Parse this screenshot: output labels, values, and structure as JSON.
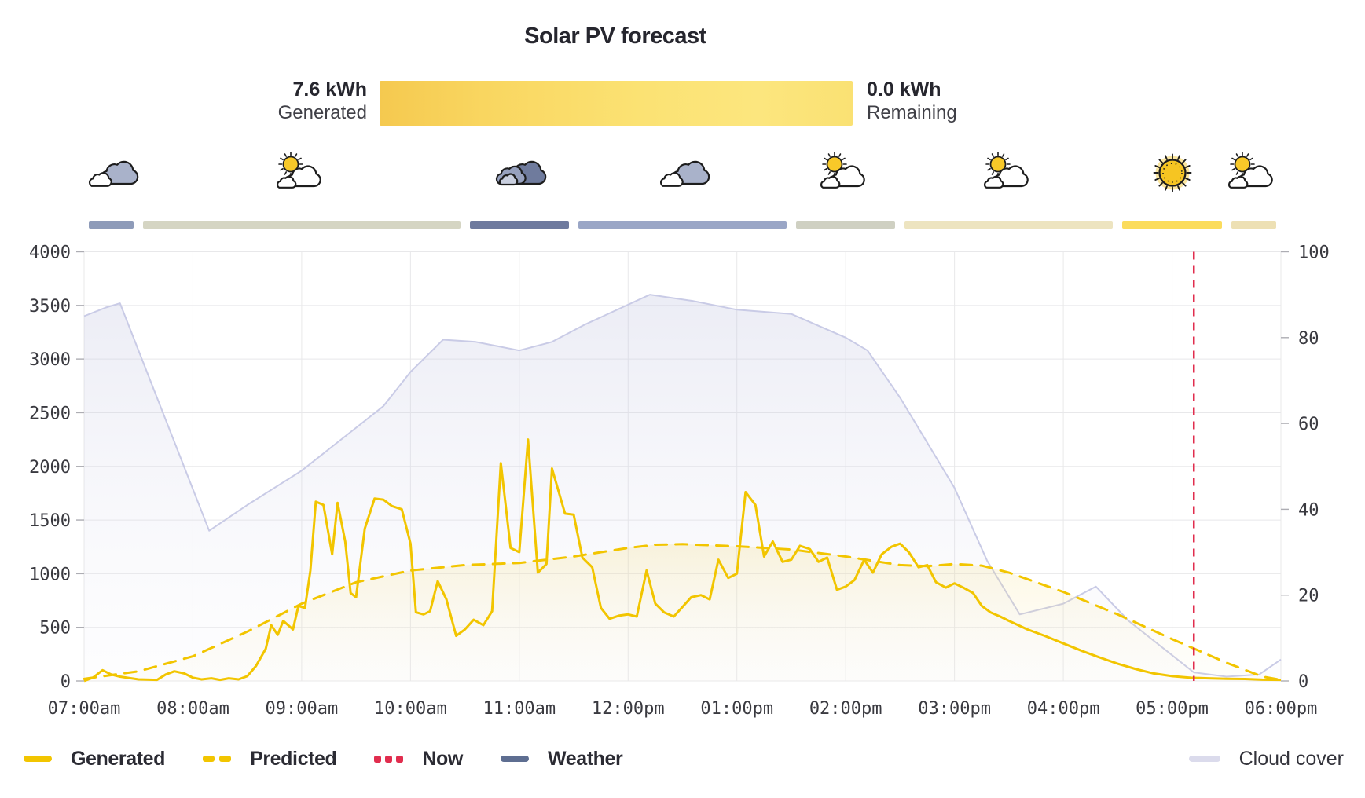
{
  "title": "Solar PV forecast",
  "energy": {
    "generated_value": "7.6 kWh",
    "generated_label": "Generated",
    "remaining_value": "0.0 kWh",
    "remaining_label": "Remaining"
  },
  "colors": {
    "generated": "#F2C500",
    "predicted": "#F2C500",
    "now": "#E12D4E",
    "weather": "#5E6E91",
    "cloud_cover": "#DBDBEC",
    "grid": "#E8E8EA",
    "axis_text": "#3A3A40"
  },
  "weather": {
    "segments": [
      {
        "icon": "cloudy",
        "color": "#8E9BB9",
        "start": 7,
        "end": 7.5
      },
      {
        "icon": "partly-sunny",
        "color": "#D5D5C3",
        "start": 7.5,
        "end": 10.5
      },
      {
        "icon": "overcast",
        "color": "#6E7A9E",
        "start": 10.5,
        "end": 11.5
      },
      {
        "icon": "cloudy",
        "color": "#9AA6C6",
        "start": 11.5,
        "end": 13.5
      },
      {
        "icon": "partly-sunny",
        "color": "#CFD0C2",
        "start": 13.5,
        "end": 14.5
      },
      {
        "icon": "partly-sunny",
        "color": "#EDE4C0",
        "start": 14.5,
        "end": 16.5
      },
      {
        "icon": "sunny",
        "color": "#FBDC5C",
        "start": 16.5,
        "end": 17.5
      },
      {
        "icon": "partly-sunny",
        "color": "#EDE0B4",
        "start": 17.5,
        "end": 18
      }
    ]
  },
  "chart_data": {
    "type": "line",
    "title": "Solar PV forecast",
    "x_axis": {
      "unit": "hour-of-day",
      "start": 7,
      "end": 18,
      "tick_hours": [
        7,
        8,
        9,
        10,
        11,
        12,
        13,
        14,
        15,
        16,
        17,
        18
      ],
      "tick_labels": [
        "07:00am",
        "08:00am",
        "09:00am",
        "10:00am",
        "11:00am",
        "12:00pm",
        "01:00pm",
        "02:00pm",
        "03:00pm",
        "04:00pm",
        "05:00pm",
        "06:00pm"
      ]
    },
    "y_left": {
      "label": "",
      "min": 0,
      "max": 4000,
      "ticks": [
        0,
        500,
        1000,
        1500,
        2000,
        2500,
        3000,
        3500,
        4000
      ]
    },
    "y_right": {
      "label": "",
      "min": 0,
      "max": 100,
      "ticks": [
        0,
        20,
        40,
        60,
        80,
        100
      ]
    },
    "now_hour": 17.2,
    "grid": true,
    "series": [
      {
        "name": "Generated",
        "axis": "left",
        "style": "solid",
        "color": "#F2C500",
        "points": [
          [
            7.0,
            0
          ],
          [
            7.08,
            30
          ],
          [
            7.17,
            100
          ],
          [
            7.25,
            60
          ],
          [
            7.33,
            40
          ],
          [
            7.5,
            15
          ],
          [
            7.67,
            10
          ],
          [
            7.75,
            60
          ],
          [
            7.83,
            90
          ],
          [
            7.92,
            70
          ],
          [
            8.0,
            30
          ],
          [
            8.08,
            15
          ],
          [
            8.17,
            25
          ],
          [
            8.25,
            10
          ],
          [
            8.33,
            25
          ],
          [
            8.42,
            15
          ],
          [
            8.5,
            45
          ],
          [
            8.58,
            140
          ],
          [
            8.67,
            300
          ],
          [
            8.72,
            520
          ],
          [
            8.78,
            430
          ],
          [
            8.83,
            560
          ],
          [
            8.92,
            480
          ],
          [
            8.97,
            700
          ],
          [
            9.03,
            680
          ],
          [
            9.08,
            1030
          ],
          [
            9.13,
            1670
          ],
          [
            9.2,
            1640
          ],
          [
            9.28,
            1180
          ],
          [
            9.33,
            1660
          ],
          [
            9.4,
            1300
          ],
          [
            9.45,
            820
          ],
          [
            9.5,
            780
          ],
          [
            9.58,
            1420
          ],
          [
            9.67,
            1700
          ],
          [
            9.75,
            1690
          ],
          [
            9.83,
            1630
          ],
          [
            9.92,
            1600
          ],
          [
            10.0,
            1280
          ],
          [
            10.05,
            640
          ],
          [
            10.12,
            620
          ],
          [
            10.18,
            650
          ],
          [
            10.25,
            930
          ],
          [
            10.33,
            760
          ],
          [
            10.42,
            420
          ],
          [
            10.5,
            480
          ],
          [
            10.58,
            570
          ],
          [
            10.67,
            520
          ],
          [
            10.75,
            650
          ],
          [
            10.83,
            2030
          ],
          [
            10.92,
            1240
          ],
          [
            11.0,
            1200
          ],
          [
            11.08,
            2250
          ],
          [
            11.17,
            1010
          ],
          [
            11.25,
            1090
          ],
          [
            11.3,
            1980
          ],
          [
            11.42,
            1560
          ],
          [
            11.5,
            1550
          ],
          [
            11.58,
            1150
          ],
          [
            11.67,
            1060
          ],
          [
            11.75,
            680
          ],
          [
            11.83,
            580
          ],
          [
            11.92,
            610
          ],
          [
            12.0,
            620
          ],
          [
            12.08,
            600
          ],
          [
            12.17,
            1030
          ],
          [
            12.25,
            720
          ],
          [
            12.33,
            640
          ],
          [
            12.42,
            600
          ],
          [
            12.5,
            690
          ],
          [
            12.58,
            780
          ],
          [
            12.67,
            800
          ],
          [
            12.75,
            760
          ],
          [
            12.83,
            1130
          ],
          [
            12.92,
            960
          ],
          [
            13.0,
            1000
          ],
          [
            13.08,
            1760
          ],
          [
            13.17,
            1640
          ],
          [
            13.25,
            1160
          ],
          [
            13.33,
            1300
          ],
          [
            13.42,
            1110
          ],
          [
            13.5,
            1130
          ],
          [
            13.58,
            1260
          ],
          [
            13.67,
            1230
          ],
          [
            13.75,
            1110
          ],
          [
            13.83,
            1150
          ],
          [
            13.92,
            850
          ],
          [
            14.0,
            880
          ],
          [
            14.08,
            940
          ],
          [
            14.17,
            1130
          ],
          [
            14.25,
            1010
          ],
          [
            14.33,
            1180
          ],
          [
            14.42,
            1250
          ],
          [
            14.5,
            1280
          ],
          [
            14.58,
            1200
          ],
          [
            14.67,
            1060
          ],
          [
            14.75,
            1080
          ],
          [
            14.83,
            920
          ],
          [
            14.92,
            870
          ],
          [
            15.0,
            910
          ],
          [
            15.08,
            870
          ],
          [
            15.17,
            820
          ],
          [
            15.25,
            700
          ],
          [
            15.33,
            640
          ],
          [
            15.42,
            600
          ],
          [
            15.5,
            560
          ],
          [
            15.67,
            480
          ],
          [
            15.83,
            420
          ],
          [
            16.0,
            350
          ],
          [
            16.17,
            280
          ],
          [
            16.33,
            220
          ],
          [
            16.5,
            160
          ],
          [
            16.67,
            110
          ],
          [
            16.83,
            70
          ],
          [
            17.0,
            45
          ],
          [
            17.17,
            30
          ],
          [
            17.33,
            25
          ],
          [
            17.5,
            20
          ],
          [
            17.67,
            18
          ],
          [
            17.83,
            12
          ],
          [
            18.0,
            10
          ]
        ]
      },
      {
        "name": "Predicted",
        "axis": "left",
        "style": "dashed",
        "color": "#F2C500",
        "points": [
          [
            7.0,
            20
          ],
          [
            7.5,
            90
          ],
          [
            8.0,
            230
          ],
          [
            8.5,
            460
          ],
          [
            9.0,
            720
          ],
          [
            9.5,
            920
          ],
          [
            10.0,
            1030
          ],
          [
            10.5,
            1080
          ],
          [
            11.0,
            1100
          ],
          [
            11.25,
            1130
          ],
          [
            11.5,
            1160
          ],
          [
            12.0,
            1240
          ],
          [
            12.25,
            1270
          ],
          [
            12.5,
            1275
          ],
          [
            13.0,
            1255
          ],
          [
            13.5,
            1225
          ],
          [
            14.0,
            1160
          ],
          [
            14.25,
            1120
          ],
          [
            14.5,
            1080
          ],
          [
            14.75,
            1070
          ],
          [
            15.0,
            1090
          ],
          [
            15.25,
            1075
          ],
          [
            15.5,
            1010
          ],
          [
            16.0,
            830
          ],
          [
            16.5,
            620
          ],
          [
            17.0,
            390
          ],
          [
            17.5,
            170
          ],
          [
            17.83,
            40
          ],
          [
            18.0,
            10
          ]
        ]
      },
      {
        "name": "Cloud cover",
        "axis": "right",
        "style": "solid-area",
        "color": "#C9CBE6",
        "points": [
          [
            7.0,
            85
          ],
          [
            7.2,
            87
          ],
          [
            7.33,
            88
          ],
          [
            8.15,
            35
          ],
          [
            8.5,
            41
          ],
          [
            9.0,
            49
          ],
          [
            9.5,
            59
          ],
          [
            9.75,
            64
          ],
          [
            10.0,
            72
          ],
          [
            10.3,
            79.5
          ],
          [
            10.6,
            79
          ],
          [
            11.0,
            77
          ],
          [
            11.3,
            79
          ],
          [
            11.6,
            83
          ],
          [
            12.2,
            90
          ],
          [
            12.6,
            88.5
          ],
          [
            13.0,
            86.5
          ],
          [
            13.5,
            85.5
          ],
          [
            14.0,
            80
          ],
          [
            14.2,
            77
          ],
          [
            14.5,
            66
          ],
          [
            15.0,
            45
          ],
          [
            15.3,
            28
          ],
          [
            15.6,
            15.5
          ],
          [
            16.0,
            18
          ],
          [
            16.3,
            22
          ],
          [
            16.6,
            14
          ],
          [
            17.0,
            6
          ],
          [
            17.2,
            2
          ],
          [
            17.5,
            1
          ],
          [
            17.8,
            1.5
          ],
          [
            18.0,
            5
          ]
        ]
      }
    ]
  },
  "legend": {
    "items": [
      {
        "label": "Generated",
        "swatch": "line",
        "color": "#F2C500"
      },
      {
        "label": "Predicted",
        "swatch": "dashed",
        "color": "#F2C500"
      },
      {
        "label": "Now",
        "swatch": "dots",
        "color": "#E12D4E"
      },
      {
        "label": "Weather",
        "swatch": "line",
        "color": "#5E6E91"
      },
      {
        "label": "Cloud cover",
        "swatch": "line-wide",
        "color": "#DBDBEC"
      }
    ]
  }
}
